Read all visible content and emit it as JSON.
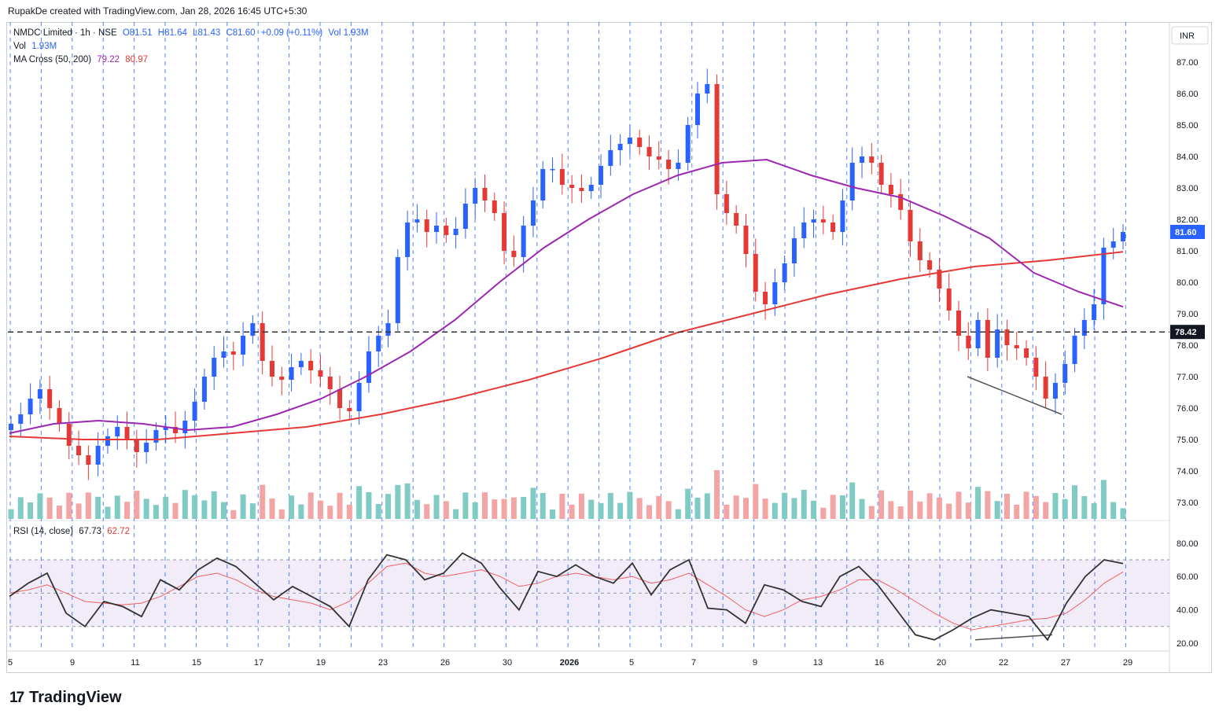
{
  "header": {
    "credit": "RupakDe created with TradingView.com, Jan 28, 2026 16:45 UTC+5:30"
  },
  "legend": {
    "symbol": "NMDC Limited · 1h · NSE",
    "open": "O81.51",
    "high": "H81.64",
    "low": "L81.43",
    "close": "C81.60",
    "change": "+0.09 (+0.11%)",
    "volume": "Vol 1.93M",
    "vol_label": "Vol",
    "vol_value": "1.93M",
    "ma_label": "MA Cross (50, 200)",
    "ma_fast": "79.22",
    "ma_slow": "80.97",
    "rsi_label": "RSI (14, close)",
    "rsi_value": "67.73",
    "rsi_ma": "62.72"
  },
  "footer": {
    "brand": "TradingView",
    "mark": "17"
  },
  "colors": {
    "up": "#2962ff",
    "down": "#e53935",
    "ma_fast": "#9c27b0",
    "ma_slow": "#e53935",
    "vol_up": "#80cbc4",
    "vol_down": "#f3a4a4",
    "rsi_line": "#333333",
    "rsi_ma": "#f06262",
    "rsi_band": "#ede7f6"
  },
  "chart_data": {
    "type": "candlestick",
    "currency": "INR",
    "price_axis_ticks": [
      "87.00",
      "86.00",
      "85.00",
      "84.00",
      "83.00",
      "82.00",
      "81.00",
      "80.00",
      "79.00",
      "78.00",
      "77.00",
      "76.00",
      "75.00",
      "74.00",
      "73.00"
    ],
    "rsi_axis_ticks": [
      "80.00",
      "60.00",
      "40.00",
      "20.00"
    ],
    "x_ticks": [
      "5",
      "9",
      "11",
      "15",
      "17",
      "19",
      "23",
      "26",
      "30",
      "2026",
      "5",
      "7",
      "9",
      "13",
      "16",
      "20",
      "22",
      "27",
      "29"
    ],
    "last_price": "81.60",
    "horizontal_level": "78.42",
    "close_path": [
      75.5,
      75.8,
      76.3,
      76.6,
      76.0,
      75.5,
      74.8,
      74.5,
      74.2,
      74.8,
      75.1,
      75.4,
      75.0,
      74.6,
      74.9,
      75.3,
      75.4,
      75.2,
      75.6,
      76.2,
      77.0,
      77.6,
      77.8,
      77.7,
      78.3,
      78.7,
      77.5,
      77.0,
      76.9,
      77.3,
      77.5,
      77.2,
      77.0,
      76.6,
      76.0,
      75.9,
      76.8,
      77.8,
      78.3,
      78.7,
      80.8,
      81.9,
      82.0,
      81.6,
      81.8,
      81.5,
      81.7,
      82.5,
      83.0,
      82.6,
      82.2,
      81.0,
      80.8,
      81.8,
      82.6,
      83.6,
      83.6,
      83.1,
      83.0,
      82.9,
      83.1,
      83.7,
      84.2,
      84.4,
      84.6,
      84.3,
      84.0,
      83.9,
      83.6,
      83.8,
      85.0,
      86.0,
      86.3,
      82.8,
      82.2,
      81.8,
      80.9,
      79.7,
      79.3,
      80.0,
      80.6,
      81.4,
      81.9,
      82.0,
      81.9,
      81.6,
      82.6,
      83.8,
      84.0,
      83.8,
      83.1,
      82.8,
      82.3,
      81.3,
      80.7,
      80.4,
      79.8,
      79.1,
      78.3,
      77.9,
      78.8,
      77.6,
      78.5,
      78.0,
      77.9,
      77.6,
      77.0,
      76.3,
      76.8,
      77.4,
      78.3,
      78.8,
      79.3,
      81.1,
      81.3,
      81.6
    ],
    "ma_fast_path": [
      75.2,
      75.5,
      75.6,
      75.5,
      75.3,
      75.4,
      75.8,
      76.3,
      77.0,
      77.8,
      78.8,
      80.0,
      81.1,
      82.0,
      82.8,
      83.4,
      83.8,
      83.9,
      83.4,
      83.0,
      82.7,
      82.1,
      81.4,
      80.3,
      79.7,
      79.22
    ],
    "ma_slow_path": [
      75.1,
      75.0,
      75.0,
      75.2,
      75.4,
      75.8,
      76.3,
      76.9,
      77.6,
      78.4,
      79.0,
      79.6,
      80.1,
      80.5,
      80.7,
      80.97
    ],
    "rsi_path": [
      48,
      56,
      62,
      38,
      30,
      45,
      42,
      36,
      58,
      52,
      64,
      71,
      66,
      56,
      46,
      54,
      48,
      42,
      30,
      58,
      73,
      70,
      58,
      62,
      74,
      68,
      53,
      40,
      63,
      60,
      67,
      60,
      56,
      68,
      49,
      64,
      70,
      41,
      40,
      32,
      55,
      52,
      45,
      42,
      60,
      66,
      55,
      40,
      25,
      22,
      28,
      35,
      40,
      38,
      36,
      22,
      44,
      60,
      70,
      67.73
    ],
    "rsi_ma_path": [
      50,
      52,
      55,
      50,
      45,
      44,
      43,
      44,
      48,
      54,
      60,
      62,
      58,
      52,
      48,
      46,
      44,
      40,
      45,
      56,
      66,
      68,
      62,
      60,
      62,
      64,
      60,
      54,
      56,
      60,
      62,
      60,
      58,
      60,
      56,
      58,
      62,
      55,
      48,
      40,
      36,
      40,
      46,
      48,
      52,
      58,
      58,
      52,
      45,
      38,
      32,
      28,
      30,
      32,
      34,
      35,
      38,
      46,
      56,
      62.72
    ],
    "divergence_price": {
      "from": 77.0,
      "to": 75.8
    },
    "divergence_rsi": {
      "from": 22,
      "to": 25
    }
  }
}
